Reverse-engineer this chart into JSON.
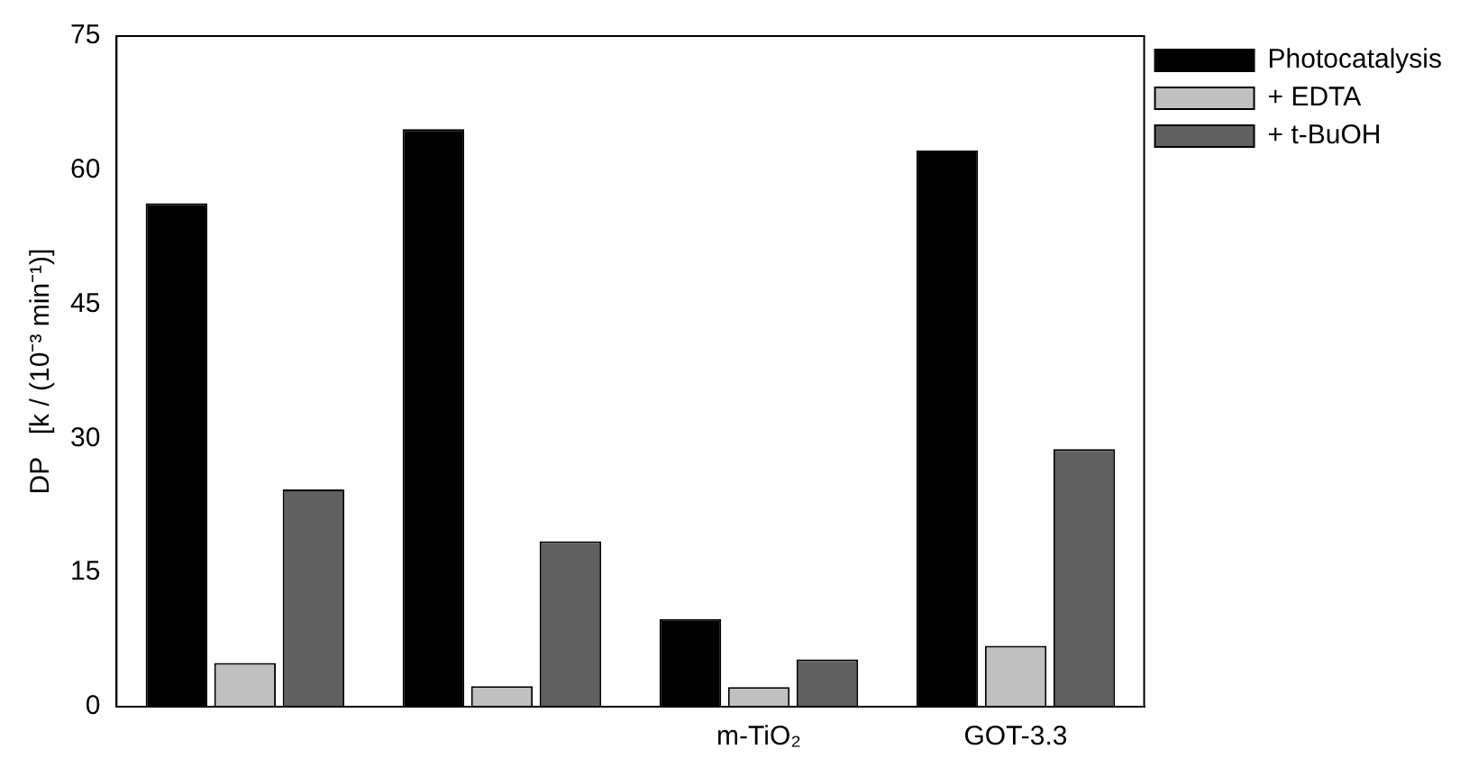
{
  "chart_data": {
    "type": "bar",
    "ylabel": "DP   [k / (10⁻³ min⁻¹)]",
    "categories": [
      null,
      null,
      "m-TiO₂",
      "GOT-3.3"
    ],
    "series": [
      {
        "name": "Photocatalysis",
        "color": "#000000",
        "values": [
          56.3,
          64.6,
          9.8,
          62.2
        ]
      },
      {
        "name": "+ EDTA",
        "color": "#c0c0c0",
        "values": [
          4.9,
          2.3,
          2.2,
          6.8
        ]
      },
      {
        "name": "+ t-BuOH",
        "color": "#606060",
        "values": [
          24.3,
          18.5,
          5.3,
          28.8
        ]
      }
    ],
    "ylim": [
      0,
      75
    ],
    "yticks": [
      0,
      15,
      30,
      45,
      60,
      75
    ],
    "grid": false,
    "legend": "top right"
  }
}
